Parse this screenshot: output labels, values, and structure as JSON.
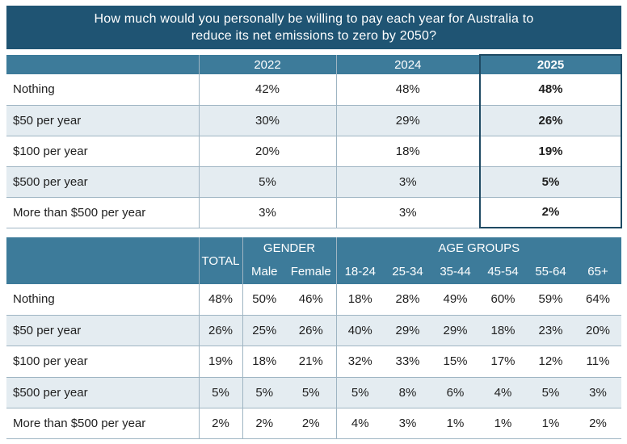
{
  "title": {
    "line1": "How much would you personally be willing to pay each year for Australia to",
    "line2": "reduce its net emissions to zero by 2050?"
  },
  "table_years": {
    "headers": [
      "2022",
      "2024",
      "2025"
    ],
    "rows": [
      {
        "label": "Nothing",
        "values": [
          "42%",
          "48%",
          "48%"
        ]
      },
      {
        "label": "$50 per year",
        "values": [
          "30%",
          "29%",
          "26%"
        ]
      },
      {
        "label": "$100 per year",
        "values": [
          "20%",
          "18%",
          "19%"
        ]
      },
      {
        "label": "$500 per year",
        "values": [
          "5%",
          "3%",
          "5%"
        ]
      },
      {
        "label": "More than $500 per year",
        "values": [
          "3%",
          "3%",
          "2%"
        ]
      }
    ]
  },
  "table_demo": {
    "total_header": "TOTAL",
    "gender_header": "GENDER",
    "age_header": "AGE GROUPS",
    "sub_headers": [
      "Male",
      "Female",
      "18-24",
      "25-34",
      "35-44",
      "45-54",
      "55-64",
      "65+"
    ],
    "rows": [
      {
        "label": "Nothing",
        "values": [
          "48%",
          "50%",
          "46%",
          "18%",
          "28%",
          "49%",
          "60%",
          "59%",
          "64%"
        ]
      },
      {
        "label": "$50 per year",
        "values": [
          "26%",
          "25%",
          "26%",
          "40%",
          "29%",
          "29%",
          "18%",
          "23%",
          "20%"
        ]
      },
      {
        "label": "$100 per year",
        "values": [
          "19%",
          "18%",
          "21%",
          "32%",
          "33%",
          "15%",
          "17%",
          "12%",
          "11%"
        ]
      },
      {
        "label": "$500 per year",
        "values": [
          "5%",
          "5%",
          "5%",
          "5%",
          "8%",
          "6%",
          "4%",
          "5%",
          "3%"
        ]
      },
      {
        "label": "More than $500 per year",
        "values": [
          "2%",
          "2%",
          "2%",
          "4%",
          "3%",
          "1%",
          "1%",
          "1%",
          "2%"
        ]
      }
    ]
  }
}
